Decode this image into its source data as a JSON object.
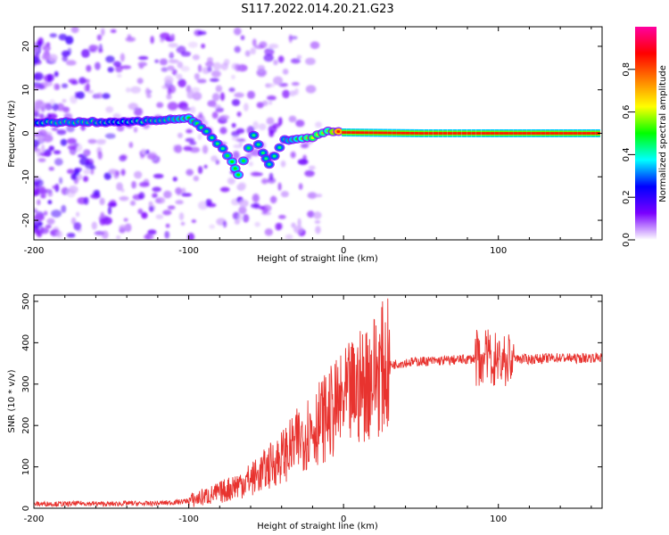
{
  "title": "S117.2022.014.20.21.G23",
  "colors": {
    "snr_line": "#e8332f",
    "axis": "#000000",
    "spectrum_core": "#e0206a",
    "spectrum_mid": "#00d070",
    "spectrum_low": "#5a14d8",
    "spectrum_faint": "#d9c4f5"
  },
  "chart_data": [
    {
      "type": "heatmap",
      "xlabel": "Height of straight line (km)",
      "ylabel": "Frequency (Hz)",
      "xlim": [
        -200,
        167
      ],
      "ylim": [
        -24.5,
        24.5
      ],
      "xticks": [
        "-200",
        "-100",
        "0",
        "100"
      ],
      "yticks": [
        "-20",
        "-10",
        "0",
        "10",
        "20"
      ],
      "xtick_values": [
        -200,
        -100,
        0,
        100
      ],
      "ytick_values": [
        -20,
        -10,
        0,
        10,
        20
      ],
      "colorbar": {
        "label": "Normalized spectral amplitude",
        "ticks": [
          "0.0",
          "0.2",
          "0.4",
          "0.6",
          "0.8"
        ],
        "tick_values": [
          0.0,
          0.2,
          0.4,
          0.6,
          0.8
        ],
        "range": [
          0,
          1
        ],
        "colormap": [
          "#ffffff",
          "#7a00ff",
          "#0000ff",
          "#00ffff",
          "#00ff00",
          "#ffff00",
          "#ff8000",
          "#ff0000",
          "#ff00a0"
        ]
      },
      "ridge_points": [
        {
          "x": -200,
          "y": 2.5,
          "a": 0.25
        },
        {
          "x": -185,
          "y": 2.5,
          "a": 0.3
        },
        {
          "x": -165,
          "y": 2.6,
          "a": 0.3
        },
        {
          "x": -145,
          "y": 2.5,
          "a": 0.25
        },
        {
          "x": -115,
          "y": 3.0,
          "a": 0.3
        },
        {
          "x": -100,
          "y": 3.5,
          "a": 0.35
        },
        {
          "x": -92,
          "y": 1.5,
          "a": 0.3
        },
        {
          "x": -85,
          "y": -1.0,
          "a": 0.3
        },
        {
          "x": -78,
          "y": -3.5,
          "a": 0.3
        },
        {
          "x": -72,
          "y": -6.5,
          "a": 0.35
        },
        {
          "x": -68,
          "y": -9.5,
          "a": 0.35
        },
        {
          "x": -58,
          "y": -0.5,
          "a": 0.3
        },
        {
          "x": -52,
          "y": -4.5,
          "a": 0.3
        },
        {
          "x": -48,
          "y": -7.0,
          "a": 0.3
        },
        {
          "x": -38,
          "y": -1.5,
          "a": 0.3
        },
        {
          "x": -30,
          "y": -1.5,
          "a": 0.35
        },
        {
          "x": -20,
          "y": -1.0,
          "a": 0.45
        },
        {
          "x": -10,
          "y": 0.5,
          "a": 0.4
        },
        {
          "x": 0,
          "y": 0.2,
          "a": 0.85
        },
        {
          "x": 50,
          "y": 0.0,
          "a": 0.85
        },
        {
          "x": 90,
          "y": 0.0,
          "a": 0.85
        },
        {
          "x": 167,
          "y": 0.0,
          "a": 0.85
        }
      ]
    },
    {
      "type": "line",
      "xlabel": "Height of straight line (km)",
      "ylabel": "SNR (10 * v/v)",
      "xlim": [
        -200,
        167
      ],
      "ylim": [
        0,
        515
      ],
      "xticks": [
        "-200",
        "-100",
        "0",
        "100"
      ],
      "yticks": [
        "0",
        "100",
        "200",
        "300",
        "400",
        "500"
      ],
      "xtick_values": [
        -200,
        -100,
        0,
        100
      ],
      "ytick_values": [
        0,
        100,
        200,
        300,
        400,
        500
      ],
      "grid": false,
      "series": [
        {
          "x": [
            -200,
            -190,
            -180,
            -170,
            -160,
            -150,
            -140,
            -130,
            -120,
            -110,
            -100,
            -95,
            -90,
            -85,
            -80,
            -75,
            -70,
            -65,
            -60,
            -55,
            -50,
            -45,
            -40,
            -35,
            -30,
            -25,
            -20,
            -15,
            -10,
            -5,
            0,
            5,
            10,
            15,
            20,
            25,
            30,
            35,
            40,
            50,
            60,
            70,
            80,
            85,
            90,
            95,
            100,
            105,
            110,
            120,
            130,
            140,
            150,
            160,
            167
          ],
          "y": [
            10,
            11,
            10,
            12,
            11,
            10,
            12,
            11,
            12,
            14,
            18,
            22,
            28,
            32,
            38,
            45,
            55,
            62,
            70,
            80,
            95,
            110,
            125,
            140,
            160,
            180,
            195,
            210,
            225,
            240,
            255,
            275,
            290,
            310,
            325,
            338,
            345,
            350,
            352,
            355,
            356,
            358,
            360,
            362,
            365,
            363,
            360,
            358,
            362,
            360,
            362,
            364,
            362,
            364,
            365
          ]
        }
      ]
    }
  ]
}
